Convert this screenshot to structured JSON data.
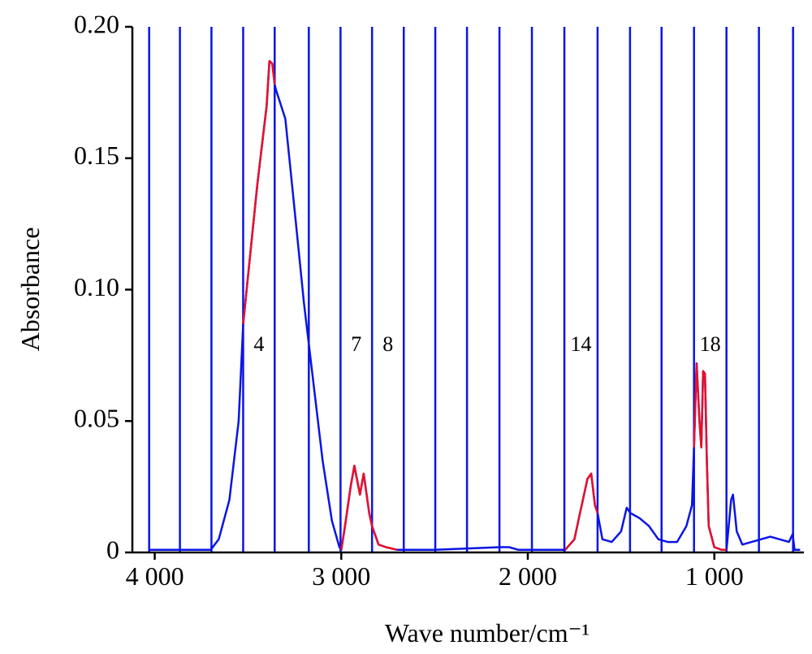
{
  "chart_data": {
    "type": "line",
    "x_label": "Wave number/cm⁻¹",
    "y_label": "Absorbance",
    "xlim": [
      4120,
      520
    ],
    "ylim": [
      0,
      0.2
    ],
    "xticks": [
      {
        "value": 4000,
        "label": "4 000"
      },
      {
        "value": 3000,
        "label": "3 000"
      },
      {
        "value": 2000,
        "label": "2 000"
      },
      {
        "value": 1000,
        "label": "1 000"
      }
    ],
    "yticks": [
      0,
      {
        "value": 0.05,
        "label": "0.05"
      },
      {
        "value": 0.1,
        "label": "0.10"
      },
      {
        "value": 0.15,
        "label": "0.15"
      },
      {
        "value": 0.2,
        "label": "0.20"
      }
    ],
    "interval_boundaries": [
      4030,
      3865,
      3696,
      3526,
      3357,
      3174,
      3004,
      2835,
      2665,
      2496,
      2326,
      2152,
      1978,
      1804,
      1626,
      1452,
      1283,
      1109,
      935,
      761,
      578
    ],
    "boundary_color": "#0a14e6",
    "annotations": [
      "4",
      "7",
      "8",
      "14",
      "18"
    ],
    "highlight_color": "#e8102a",
    "series": [
      {
        "color": "#0a14e6",
        "x": [
          4030,
          3800,
          3700,
          3657,
          3600,
          3550,
          3526,
          3500,
          3450,
          3400,
          3385,
          3370,
          3357,
          3350,
          3300,
          3250,
          3200,
          3150,
          3100,
          3050,
          3010,
          3000,
          2980,
          2950,
          2930,
          2900,
          2880,
          2850,
          2835,
          2800,
          2760,
          2700,
          2500,
          2150,
          2100,
          2050,
          1800,
          1750,
          1720,
          1680,
          1660,
          1640,
          1626,
          1600,
          1550,
          1500,
          1470,
          1450,
          1400,
          1350,
          1300,
          1250,
          1200,
          1150,
          1120,
          1109,
          1095,
          1080,
          1070,
          1060,
          1050,
          1040,
          1030,
          1000,
          960,
          935,
          910,
          900,
          880,
          850,
          800,
          750,
          700,
          650,
          600,
          580,
          570,
          540
        ],
        "values": [
          0.001,
          0.001,
          0.001,
          0.005,
          0.02,
          0.05,
          0.087,
          0.105,
          0.14,
          0.17,
          0.187,
          0.186,
          0.178,
          0.176,
          0.165,
          0.13,
          0.095,
          0.065,
          0.035,
          0.012,
          0.002,
          0.001,
          0.01,
          0.025,
          0.033,
          0.022,
          0.03,
          0.015,
          0.01,
          0.003,
          0.002,
          0.001,
          0.001,
          0.002,
          0.002,
          0.001,
          0.001,
          0.005,
          0.015,
          0.028,
          0.03,
          0.018,
          0.015,
          0.005,
          0.004,
          0.008,
          0.017,
          0.015,
          0.013,
          0.01,
          0.005,
          0.004,
          0.004,
          0.01,
          0.018,
          0.04,
          0.072,
          0.05,
          0.04,
          0.069,
          0.068,
          0.035,
          0.01,
          0.002,
          0.001,
          0.001,
          0.02,
          0.022,
          0.008,
          0.003,
          0.004,
          0.005,
          0.006,
          0.005,
          0.004,
          0.007,
          0.001,
          0.001
        ]
      }
    ]
  }
}
